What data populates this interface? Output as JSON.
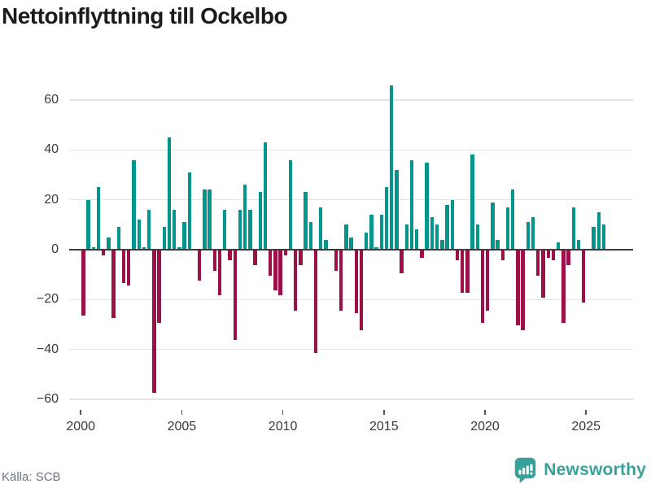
{
  "header": {
    "title": "Nettoinflyttning till Ockelbo"
  },
  "footer": {
    "source_label": "Källa: SCB",
    "brand_name": "Newsworthy"
  },
  "colors": {
    "positive_bar": "#00968b",
    "negative_bar": "#9b1046",
    "zero_line": "#3d3d3d",
    "gridline": "#e4e4e4",
    "axis_text": "#3a3a3a",
    "title_text": "#1b1b1b",
    "source_text": "#6d737e",
    "brand_teal": "#38a29a",
    "background": "#ffffff"
  },
  "chart_data": {
    "type": "bar",
    "title": "Nettoinflyttning till Ockelbo",
    "frequency": "quarterly",
    "x_start": {
      "year": 2000,
      "quarter": 1
    },
    "x_end": {
      "year": 2025,
      "quarter": 4
    },
    "values": [
      -26,
      20,
      1,
      25,
      -2,
      5,
      -27,
      9,
      -13,
      -14,
      36,
      12,
      1,
      16,
      -57,
      -29,
      9,
      45,
      16,
      1,
      11,
      31,
      0,
      -12,
      24,
      24,
      -8,
      -18,
      16,
      -4,
      -36,
      16,
      26,
      16,
      -6,
      23,
      43,
      -10,
      -16,
      -18,
      -2,
      36,
      -24,
      -6,
      23,
      11,
      -41,
      17,
      4,
      0,
      -8,
      -24,
      10,
      5,
      -25,
      -32,
      7,
      14,
      1,
      14,
      25,
      66,
      32,
      -9,
      10,
      36,
      8,
      -3,
      35,
      13,
      10,
      4,
      18,
      20,
      -4,
      -17,
      -17,
      38,
      10,
      -29,
      -24,
      19,
      4,
      -4,
      17,
      24,
      -30,
      -32,
      11,
      13,
      -10,
      -19,
      -3,
      -4,
      3,
      -29,
      -6,
      17,
      4,
      -21,
      0,
      9,
      15,
      10
    ],
    "x_tick_years": [
      2000,
      2005,
      2010,
      2015,
      2020,
      2025
    ],
    "y_ticks": [
      60,
      40,
      20,
      0,
      -20,
      -40,
      -60
    ],
    "ylim": [
      -60,
      66
    ],
    "grid": true,
    "legend": false,
    "positive_color": "#00968b",
    "negative_color": "#9b1046"
  }
}
